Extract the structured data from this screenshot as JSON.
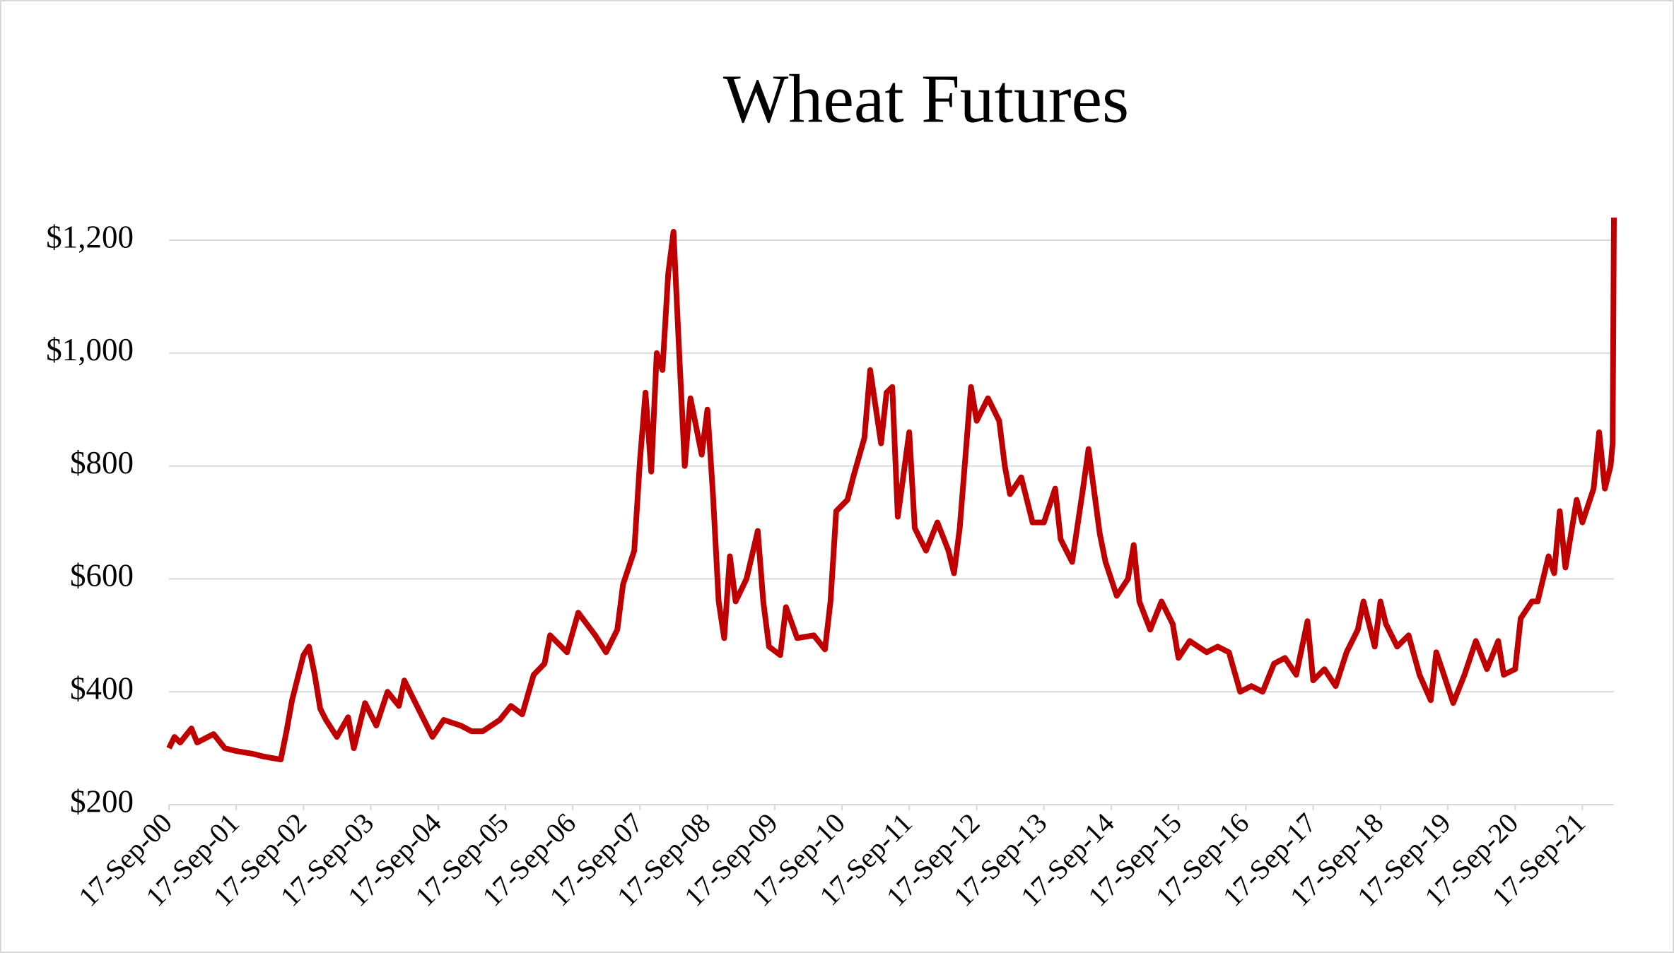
{
  "chart_data": {
    "type": "line",
    "title": "Wheat Futures",
    "x": [
      "2000-09-17",
      "2000-10-17",
      "2000-11-17",
      "2001-01-17",
      "2001-02-17",
      "2001-04-17",
      "2001-05-17",
      "2001-07-17",
      "2001-09-17",
      "2001-12-17",
      "2002-02-17",
      "2002-05-17",
      "2002-06-17",
      "2002-07-17",
      "2002-09-17",
      "2002-10-17",
      "2002-11-17",
      "2002-12-17",
      "2003-01-17",
      "2003-03-17",
      "2003-05-17",
      "2003-06-17",
      "2003-08-17",
      "2003-10-17",
      "2003-12-17",
      "2004-02-17",
      "2004-03-17",
      "2004-05-17",
      "2004-08-17",
      "2004-10-17",
      "2005-01-17",
      "2005-03-17",
      "2005-05-17",
      "2005-08-17",
      "2005-10-17",
      "2005-12-17",
      "2006-02-17",
      "2006-04-17",
      "2006-05-17",
      "2006-08-17",
      "2006-10-17",
      "2007-01-17",
      "2007-03-17",
      "2007-05-17",
      "2007-06-17",
      "2007-08-17",
      "2007-09-17",
      "2007-10-17",
      "2007-11-17",
      "2007-12-17",
      "2008-01-17",
      "2008-02-17",
      "2008-03-17",
      "2008-04-17",
      "2008-05-17",
      "2008-06-17",
      "2008-08-17",
      "2008-09-17",
      "2008-10-17",
      "2008-11-17",
      "2008-12-17",
      "2009-01-17",
      "2009-02-17",
      "2009-04-17",
      "2009-06-17",
      "2009-07-17",
      "2009-08-17",
      "2009-10-17",
      "2009-11-17",
      "2010-01-17",
      "2010-04-17",
      "2010-06-17",
      "2010-07-17",
      "2010-08-17",
      "2010-10-17",
      "2010-11-17",
      "2011-01-17",
      "2011-02-17",
      "2011-04-17",
      "2011-05-17",
      "2011-06-17",
      "2011-07-17",
      "2011-09-17",
      "2011-10-17",
      "2011-12-17",
      "2012-02-17",
      "2012-04-17",
      "2012-05-17",
      "2012-06-17",
      "2012-08-17",
      "2012-09-17",
      "2012-11-17",
      "2013-01-17",
      "2013-02-17",
      "2013-03-17",
      "2013-05-17",
      "2013-07-17",
      "2013-09-17",
      "2013-11-17",
      "2013-12-17",
      "2014-02-17",
      "2014-04-17",
      "2014-05-17",
      "2014-07-17",
      "2014-08-17",
      "2014-10-17",
      "2014-12-17",
      "2015-01-17",
      "2015-02-17",
      "2015-04-17",
      "2015-06-17",
      "2015-08-17",
      "2015-09-17",
      "2015-11-17",
      "2016-02-17",
      "2016-04-17",
      "2016-06-17",
      "2016-08-17",
      "2016-10-17",
      "2016-12-17",
      "2017-02-17",
      "2017-04-17",
      "2017-06-17",
      "2017-08-17",
      "2017-09-17",
      "2017-11-17",
      "2018-01-17",
      "2018-03-17",
      "2018-05-17",
      "2018-06-17",
      "2018-08-17",
      "2018-09-17",
      "2018-10-17",
      "2018-12-17",
      "2019-02-17",
      "2019-04-17",
      "2019-06-17",
      "2019-07-17",
      "2019-08-17",
      "2019-10-17",
      "2019-12-17",
      "2020-02-17",
      "2020-04-17",
      "2020-06-17",
      "2020-07-17",
      "2020-09-17",
      "2020-10-17",
      "2020-12-17",
      "2021-01-17",
      "2021-03-17",
      "2021-04-17",
      "2021-05-17",
      "2021-06-17",
      "2021-08-17",
      "2021-09-17",
      "2021-11-17",
      "2021-12-17",
      "2022-01-17",
      "2022-02-17",
      "2022-02-28",
      "2022-03-07"
    ],
    "series": [
      {
        "color": "#c00000",
        "values": [
          300,
          320,
          310,
          335,
          310,
          320,
          325,
          300,
          295,
          290,
          285,
          280,
          330,
          385,
          465,
          480,
          430,
          370,
          350,
          320,
          355,
          300,
          380,
          340,
          400,
          375,
          420,
          380,
          320,
          350,
          340,
          330,
          330,
          350,
          375,
          360,
          430,
          450,
          500,
          470,
          540,
          500,
          470,
          510,
          590,
          650,
          810,
          930,
          790,
          1000,
          970,
          1140,
          1215,
          1000,
          800,
          920,
          820,
          900,
          750,
          560,
          495,
          640,
          560,
          600,
          685,
          560,
          480,
          465,
          550,
          495,
          500,
          475,
          560,
          720,
          740,
          780,
          850,
          970,
          840,
          930,
          940,
          710,
          860,
          690,
          650,
          700,
          650,
          610,
          690,
          940,
          880,
          920,
          880,
          800,
          750,
          780,
          700,
          700,
          760,
          670,
          630,
          760,
          830,
          680,
          630,
          570,
          600,
          660,
          560,
          510,
          560,
          520,
          460,
          490,
          470,
          480,
          470,
          400,
          410,
          400,
          450,
          460,
          430,
          525,
          420,
          440,
          410,
          470,
          510,
          560,
          480,
          560,
          520,
          480,
          500,
          430,
          385,
          470,
          440,
          380,
          430,
          490,
          440,
          490,
          430,
          440,
          530,
          560,
          560,
          640,
          610,
          720,
          620,
          740,
          700,
          760,
          860,
          760,
          800,
          840,
          1240
        ]
      }
    ],
    "xlim": [
      "2000-09-17",
      "2022-03-07"
    ],
    "xticks": [
      {
        "value": "2000-09-17",
        "label": "17-Sep-00"
      },
      {
        "value": "2001-09-17",
        "label": "17-Sep-01"
      },
      {
        "value": "2002-09-17",
        "label": "17-Sep-02"
      },
      {
        "value": "2003-09-17",
        "label": "17-Sep-03"
      },
      {
        "value": "2004-09-17",
        "label": "17-Sep-04"
      },
      {
        "value": "2005-09-17",
        "label": "17-Sep-05"
      },
      {
        "value": "2006-09-17",
        "label": "17-Sep-06"
      },
      {
        "value": "2007-09-17",
        "label": "17-Sep-07"
      },
      {
        "value": "2008-09-17",
        "label": "17-Sep-08"
      },
      {
        "value": "2009-09-17",
        "label": "17-Sep-09"
      },
      {
        "value": "2010-09-17",
        "label": "17-Sep-10"
      },
      {
        "value": "2011-09-17",
        "label": "17-Sep-11"
      },
      {
        "value": "2012-09-17",
        "label": "17-Sep-12"
      },
      {
        "value": "2013-09-17",
        "label": "17-Sep-13"
      },
      {
        "value": "2014-09-17",
        "label": "17-Sep-14"
      },
      {
        "value": "2015-09-17",
        "label": "17-Sep-15"
      },
      {
        "value": "2016-09-17",
        "label": "17-Sep-16"
      },
      {
        "value": "2017-09-17",
        "label": "17-Sep-17"
      },
      {
        "value": "2018-09-17",
        "label": "17-Sep-18"
      },
      {
        "value": "2019-09-17",
        "label": "17-Sep-19"
      },
      {
        "value": "2020-09-17",
        "label": "17-Sep-20"
      },
      {
        "value": "2021-09-17",
        "label": "17-Sep-21"
      }
    ],
    "ylim": [
      200,
      1200
    ],
    "yticks": [
      {
        "value": 200,
        "label": "$200"
      },
      {
        "value": 400,
        "label": "$400"
      },
      {
        "value": 600,
        "label": "$600"
      },
      {
        "value": 800,
        "label": "$800"
      },
      {
        "value": 1000,
        "label": "$1,000"
      },
      {
        "value": 1200,
        "label": "$1,200"
      }
    ],
    "grid": true
  }
}
